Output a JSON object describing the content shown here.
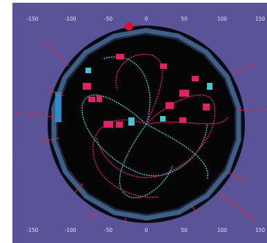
{
  "colors": {
    "panel_background": "#5a5397",
    "detector_interior": "#050505",
    "detector_ring": "#3f5f86",
    "barrel_module": "#1d4b6c",
    "energy_deposit": "#e0206a",
    "cyan_hits": "#3dc9cf",
    "track": "#4a5fa8",
    "red_tower": "#e0283c"
  },
  "axes": {
    "top_ticks": [
      "-150",
      "-100",
      "-50",
      "0",
      "50",
      "100",
      "150"
    ],
    "bottom_ticks": [
      "-150",
      "-100",
      "-50",
      "0",
      "50",
      "100",
      "150"
    ],
    "tick_values": [
      -150,
      -100,
      -50,
      0,
      50,
      100,
      150
    ]
  }
}
